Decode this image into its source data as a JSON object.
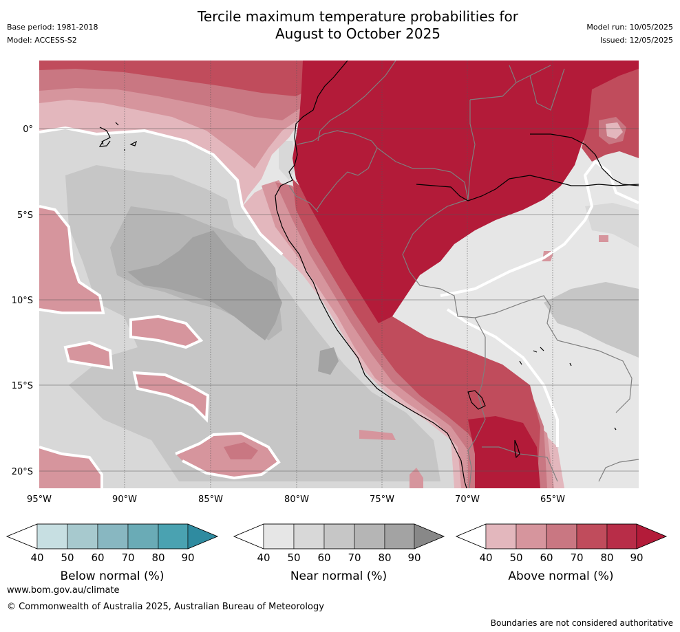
{
  "header": {
    "title_line1": "Tercile maximum temperature probabilities for",
    "title_line2": "August to October 2025",
    "base_period": "Base period: 1981-2018",
    "model": "Model: ACCESS-S2",
    "model_run": "Model run: 10/05/2025",
    "issued": "Issued: 12/05/2025"
  },
  "map": {
    "lon_labels": [
      "95°W",
      "90°W",
      "85°W",
      "80°W",
      "75°W",
      "70°W",
      "65°W"
    ],
    "lat_labels": [
      "0°",
      "5°S",
      "10°S",
      "15°S",
      "20°S"
    ],
    "extent": {
      "lon_min": -95,
      "lon_max": -60,
      "lat_max": 4,
      "lat_min": -21
    },
    "colors": {
      "above_90": "#b31b39",
      "above_80": "#c04c5c",
      "above_70": "#c97782",
      "above_60": "#d6959d",
      "above_50": "#e3b7bd",
      "near_40": "#e6e6e6",
      "near_50": "#d8d8d8",
      "near_60": "#c6c6c6",
      "near_70": "#b5b5b5",
      "near_80": "#a3a3a3",
      "coastline": "#000000",
      "border": "#7f7f7f"
    }
  },
  "colorbars": [
    {
      "title": "Below normal (%)",
      "ticks": [
        "40",
        "50",
        "60",
        "70",
        "80",
        "90"
      ],
      "colors": [
        "#ffffff",
        "#c7dfe2",
        "#a7c9ce",
        "#88b7c1",
        "#6aabb6",
        "#4aa2b1",
        "#2f8ba0"
      ]
    },
    {
      "title": "Near normal (%)",
      "ticks": [
        "40",
        "50",
        "60",
        "70",
        "80",
        "90"
      ],
      "colors": [
        "#ffffff",
        "#e6e6e6",
        "#d8d8d8",
        "#c6c6c6",
        "#b5b5b5",
        "#a3a3a3",
        "#888888"
      ]
    },
    {
      "title": "Above normal (%)",
      "ticks": [
        "40",
        "50",
        "60",
        "70",
        "80",
        "90"
      ],
      "colors": [
        "#ffffff",
        "#e3b7bd",
        "#d6959d",
        "#c97782",
        "#c04c5c",
        "#b82d48",
        "#b31b39"
      ]
    }
  ],
  "footer": {
    "url": "www.bom.gov.au/climate",
    "copyright": "© Commonwealth of Australia 2025, Australian Bureau of Meteorology",
    "note": "Boundaries are not considered authoritative"
  }
}
